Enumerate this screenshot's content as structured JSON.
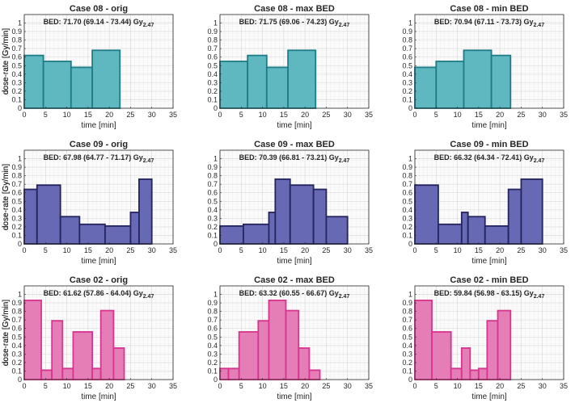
{
  "colors": {
    "teal": "#5FB8C0",
    "teal_edge": "#1D7C86",
    "navy": "#6869B4",
    "navy_edge": "#24245E",
    "pink": "#E57DB6",
    "pink_edge": "#D9348F"
  },
  "chart_data": [
    {
      "type": "bar",
      "title": "Case 08 - orig",
      "bed_text": "BED: 71.70 (69.14 - 73.44) Gy",
      "bed_sub": "2.47",
      "xlabel": "time [min]",
      "ylabel": "dose-rate [Gy/min]",
      "xlim": [
        0,
        35
      ],
      "ylim": [
        0,
        1.1
      ],
      "xticks": [
        0,
        5,
        10,
        15,
        20,
        25,
        30,
        35
      ],
      "yticks": [
        0,
        0.1,
        0.2,
        0.3,
        0.4,
        0.5,
        0.6,
        0.7,
        0.8,
        0.9,
        1
      ],
      "color": "teal",
      "bars": [
        {
          "x0": 0,
          "x1": 4.5,
          "value": 0.62
        },
        {
          "x0": 4.5,
          "x1": 11,
          "value": 0.55
        },
        {
          "x0": 11,
          "x1": 16,
          "value": 0.48
        },
        {
          "x0": 16,
          "x1": 22.5,
          "value": 0.68
        }
      ]
    },
    {
      "type": "bar",
      "title": "Case 08 - max BED",
      "bed_text": "BED: 71.75 (69.06 - 74.23) Gy",
      "bed_sub": "2.47",
      "xlabel": "time [min]",
      "ylabel": "dose-rate [Gy/min]",
      "xlim": [
        0,
        35
      ],
      "ylim": [
        0,
        1.1
      ],
      "xticks": [
        0,
        5,
        10,
        15,
        20,
        25,
        30,
        35
      ],
      "yticks": [
        0,
        0.1,
        0.2,
        0.3,
        0.4,
        0.5,
        0.6,
        0.7,
        0.8,
        0.9,
        1
      ],
      "color": "teal",
      "bars": [
        {
          "x0": 0,
          "x1": 6.5,
          "value": 0.55
        },
        {
          "x0": 6.5,
          "x1": 11,
          "value": 0.62
        },
        {
          "x0": 11,
          "x1": 16,
          "value": 0.48
        },
        {
          "x0": 16,
          "x1": 22.5,
          "value": 0.68
        }
      ]
    },
    {
      "type": "bar",
      "title": "Case 08 - min BED",
      "bed_text": "BED: 70.94 (67.11 - 73.73) Gy",
      "bed_sub": "2.47",
      "xlabel": "time [min]",
      "ylabel": "dose-rate [Gy/min]",
      "xlim": [
        0,
        35
      ],
      "ylim": [
        0,
        1.1
      ],
      "xticks": [
        0,
        5,
        10,
        15,
        20,
        25,
        30,
        35
      ],
      "yticks": [
        0,
        0.1,
        0.2,
        0.3,
        0.4,
        0.5,
        0.6,
        0.7,
        0.8,
        0.9,
        1
      ],
      "color": "teal",
      "bars": [
        {
          "x0": 0,
          "x1": 5,
          "value": 0.48
        },
        {
          "x0": 5,
          "x1": 11.5,
          "value": 0.55
        },
        {
          "x0": 11.5,
          "x1": 18,
          "value": 0.68
        },
        {
          "x0": 18,
          "x1": 22.5,
          "value": 0.62
        }
      ]
    },
    {
      "type": "bar",
      "title": "Case 09 - orig",
      "bed_text": "BED: 67.98 (64.77 - 71.17) Gy",
      "bed_sub": "2.47",
      "xlabel": "time [min]",
      "ylabel": "dose-rate [Gy/min]",
      "xlim": [
        0,
        35
      ],
      "ylim": [
        0,
        1.1
      ],
      "xticks": [
        0,
        5,
        10,
        15,
        20,
        25,
        30,
        35
      ],
      "yticks": [
        0,
        0.1,
        0.2,
        0.3,
        0.4,
        0.5,
        0.6,
        0.7,
        0.8,
        0.9,
        1
      ],
      "color": "navy",
      "bars": [
        {
          "x0": 0,
          "x1": 3,
          "value": 0.64
        },
        {
          "x0": 3,
          "x1": 8.5,
          "value": 0.69
        },
        {
          "x0": 8.5,
          "x1": 13,
          "value": 0.32
        },
        {
          "x0": 13,
          "x1": 19,
          "value": 0.23
        },
        {
          "x0": 19,
          "x1": 25,
          "value": 0.21
        },
        {
          "x0": 25,
          "x1": 27,
          "value": 0.37
        },
        {
          "x0": 27,
          "x1": 30,
          "value": 0.76
        }
      ]
    },
    {
      "type": "bar",
      "title": "Case 09 - max BED",
      "bed_text": "BED: 70.39 (66.81 - 73.21) Gy",
      "bed_sub": "2.47",
      "xlabel": "time [min]",
      "ylabel": "dose-rate [Gy/min]",
      "xlim": [
        0,
        35
      ],
      "ylim": [
        0,
        1.1
      ],
      "xticks": [
        0,
        5,
        10,
        15,
        20,
        25,
        30,
        35
      ],
      "yticks": [
        0,
        0.1,
        0.2,
        0.3,
        0.4,
        0.5,
        0.6,
        0.7,
        0.8,
        0.9,
        1
      ],
      "color": "navy",
      "bars": [
        {
          "x0": 0,
          "x1": 5.5,
          "value": 0.21
        },
        {
          "x0": 5.5,
          "x1": 11.5,
          "value": 0.23
        },
        {
          "x0": 11.5,
          "x1": 13,
          "value": 0.37
        },
        {
          "x0": 13,
          "x1": 16.5,
          "value": 0.76
        },
        {
          "x0": 16.5,
          "x1": 22,
          "value": 0.69
        },
        {
          "x0": 22,
          "x1": 25,
          "value": 0.64
        },
        {
          "x0": 25,
          "x1": 30,
          "value": 0.32
        }
      ]
    },
    {
      "type": "bar",
      "title": "Case 09 - min BED",
      "bed_text": "BED: 66.32 (64.34 - 72.41) Gy",
      "bed_sub": "2.47",
      "xlabel": "time [min]",
      "ylabel": "dose-rate [Gy/min]",
      "xlim": [
        0,
        35
      ],
      "ylim": [
        0,
        1.1
      ],
      "xticks": [
        0,
        5,
        10,
        15,
        20,
        25,
        30,
        35
      ],
      "yticks": [
        0,
        0.1,
        0.2,
        0.3,
        0.4,
        0.5,
        0.6,
        0.7,
        0.8,
        0.9,
        1
      ],
      "color": "navy",
      "bars": [
        {
          "x0": 0,
          "x1": 5.5,
          "value": 0.69
        },
        {
          "x0": 5.5,
          "x1": 11,
          "value": 0.23
        },
        {
          "x0": 11,
          "x1": 12.5,
          "value": 0.37
        },
        {
          "x0": 12.5,
          "x1": 16.5,
          "value": 0.32
        },
        {
          "x0": 16.5,
          "x1": 22,
          "value": 0.21
        },
        {
          "x0": 22,
          "x1": 25,
          "value": 0.64
        },
        {
          "x0": 25,
          "x1": 30,
          "value": 0.76
        }
      ]
    },
    {
      "type": "bar",
      "title": "Case 02 - orig",
      "bed_text": "BED: 61.62 (57.86 - 64.04) Gy",
      "bed_sub": "2.47",
      "xlabel": "time [min]",
      "ylabel": "dose-rate [Gy/min]",
      "xlim": [
        0,
        35
      ],
      "ylim": [
        0,
        1.1
      ],
      "xticks": [
        0,
        5,
        10,
        15,
        20,
        25,
        30,
        35
      ],
      "yticks": [
        0,
        0.1,
        0.2,
        0.3,
        0.4,
        0.5,
        0.6,
        0.7,
        0.8,
        0.9,
        1
      ],
      "color": "pink",
      "bars": [
        {
          "x0": 0,
          "x1": 4,
          "value": 0.93
        },
        {
          "x0": 4,
          "x1": 6.5,
          "value": 0.11
        },
        {
          "x0": 6.5,
          "x1": 9,
          "value": 0.69
        },
        {
          "x0": 9,
          "x1": 11.5,
          "value": 0.13
        },
        {
          "x0": 11.5,
          "x1": 16,
          "value": 0.56
        },
        {
          "x0": 16,
          "x1": 18,
          "value": 0.13
        },
        {
          "x0": 18,
          "x1": 21,
          "value": 0.81
        },
        {
          "x0": 21,
          "x1": 23.5,
          "value": 0.37
        }
      ]
    },
    {
      "type": "bar",
      "title": "Case 02 - max BED",
      "bed_text": "BED: 63.32 (60.55 - 66.67) Gy",
      "bed_sub": "2.47",
      "xlabel": "time [min]",
      "ylabel": "dose-rate [Gy/min]",
      "xlim": [
        0,
        35
      ],
      "ylim": [
        0,
        1.1
      ],
      "xticks": [
        0,
        5,
        10,
        15,
        20,
        25,
        30,
        35
      ],
      "yticks": [
        0,
        0.1,
        0.2,
        0.3,
        0.4,
        0.5,
        0.6,
        0.7,
        0.8,
        0.9,
        1
      ],
      "color": "pink",
      "bars": [
        {
          "x0": 0,
          "x1": 2,
          "value": 0.13
        },
        {
          "x0": 2,
          "x1": 4.5,
          "value": 0.13
        },
        {
          "x0": 4.5,
          "x1": 9,
          "value": 0.56
        },
        {
          "x0": 9,
          "x1": 11.5,
          "value": 0.69
        },
        {
          "x0": 11.5,
          "x1": 15.5,
          "value": 0.93
        },
        {
          "x0": 15.5,
          "x1": 18.5,
          "value": 0.81
        },
        {
          "x0": 18.5,
          "x1": 21,
          "value": 0.37
        },
        {
          "x0": 21,
          "x1": 23.5,
          "value": 0.11
        }
      ]
    },
    {
      "type": "bar",
      "title": "Case 02 - min BED",
      "bed_text": "BED: 59.84 (56.98 - 63.15) Gy",
      "bed_sub": "2.47",
      "xlabel": "time [min]",
      "ylabel": "dose-rate [Gy/min]",
      "xlim": [
        0,
        35
      ],
      "ylim": [
        0,
        1.1
      ],
      "xticks": [
        0,
        5,
        10,
        15,
        20,
        25,
        30,
        35
      ],
      "yticks": [
        0,
        0.1,
        0.2,
        0.3,
        0.4,
        0.5,
        0.6,
        0.7,
        0.8,
        0.9,
        1
      ],
      "color": "pink",
      "bars": [
        {
          "x0": 0,
          "x1": 4,
          "value": 0.93
        },
        {
          "x0": 4,
          "x1": 8.5,
          "value": 0.56
        },
        {
          "x0": 8.5,
          "x1": 11,
          "value": 0.13
        },
        {
          "x0": 11,
          "x1": 13,
          "value": 0.37
        },
        {
          "x0": 13,
          "x1": 15,
          "value": 0.11
        },
        {
          "x0": 15,
          "x1": 17,
          "value": 0.13
        },
        {
          "x0": 17,
          "x1": 19.5,
          "value": 0.69
        },
        {
          "x0": 19.5,
          "x1": 22.5,
          "value": 0.81
        }
      ]
    }
  ]
}
